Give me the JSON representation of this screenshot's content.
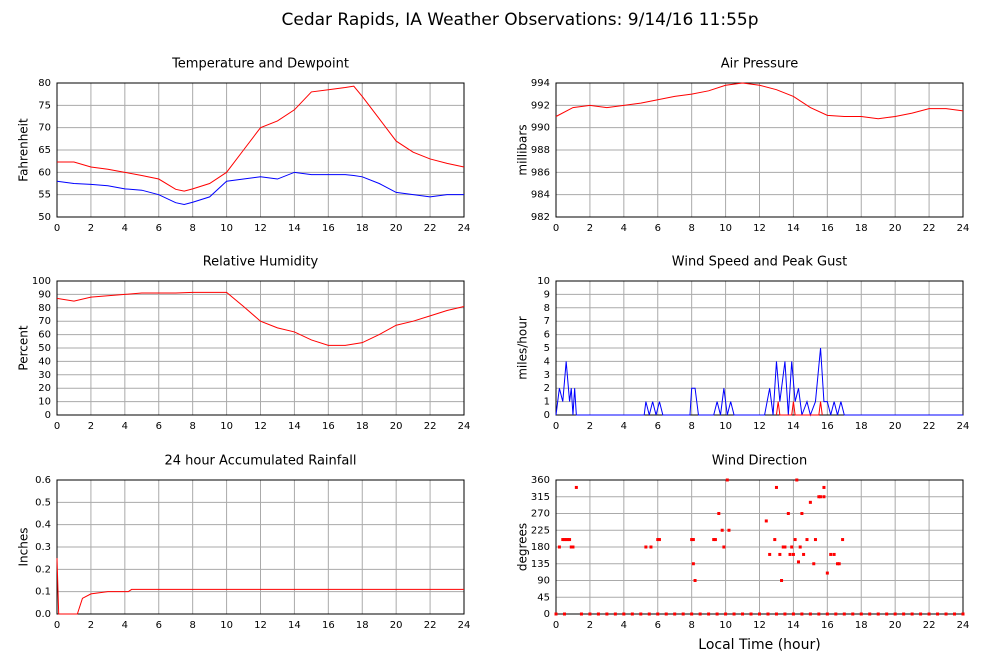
{
  "title": "Cedar Rapids, IA Weather Observations: 9/14/16 11:55p",
  "chart_data": [
    {
      "type": "line",
      "title": "Temperature and Dewpoint",
      "ylabel": "Fahrenheit",
      "x": [
        0,
        1,
        2,
        3,
        4,
        5,
        6,
        7,
        7.5,
        8,
        9,
        10,
        11,
        12,
        13,
        14,
        15,
        16,
        17,
        17.5,
        18,
        19,
        20,
        21,
        22,
        23,
        24
      ],
      "series": [
        {
          "color": "#ff0000",
          "values": [
            62.3,
            62.3,
            61.2,
            60.7,
            60,
            59.3,
            58.5,
            56.2,
            55.8,
            56.3,
            57.5,
            60,
            65,
            70,
            71.5,
            74,
            78,
            78.5,
            79,
            79.3,
            77,
            72,
            67,
            64.5,
            63,
            62,
            61.2
          ]
        },
        {
          "color": "#0000ff",
          "values": [
            58,
            57.5,
            57.3,
            57,
            56.3,
            56,
            55,
            53.2,
            52.8,
            53.3,
            54.5,
            58,
            58.5,
            59,
            58.5,
            60,
            59.5,
            59.5,
            59.5,
            59.3,
            59,
            57.5,
            55.5,
            55,
            54.5,
            55,
            55
          ]
        }
      ],
      "xlim": [
        0,
        24
      ],
      "xticks": [
        0,
        2,
        4,
        6,
        8,
        10,
        12,
        14,
        16,
        18,
        20,
        22,
        24
      ],
      "ylim": [
        50,
        80
      ],
      "yticks": [
        50,
        55,
        60,
        65,
        70,
        75,
        80
      ],
      "grid": true
    },
    {
      "type": "line",
      "title": "Air Pressure",
      "ylabel": "millibars",
      "x": [
        0,
        1,
        2,
        3,
        4,
        5,
        6,
        7,
        8,
        9,
        10,
        11,
        12,
        13,
        14,
        15,
        16,
        17,
        18,
        19,
        20,
        21,
        22,
        23,
        24
      ],
      "series": [
        {
          "color": "#ff0000",
          "values": [
            991,
            991.8,
            992,
            991.8,
            992,
            992.2,
            992.5,
            992.8,
            993,
            993.3,
            993.8,
            994,
            993.8,
            993.4,
            992.8,
            991.8,
            991.1,
            991,
            991,
            990.8,
            991,
            991.3,
            991.7,
            991.7,
            991.5
          ]
        }
      ],
      "xlim": [
        0,
        24
      ],
      "xticks": [
        0,
        2,
        4,
        6,
        8,
        10,
        12,
        14,
        16,
        18,
        20,
        22,
        24
      ],
      "ylim": [
        982,
        994
      ],
      "yticks": [
        982,
        984,
        986,
        988,
        990,
        992,
        994
      ],
      "grid": true
    },
    {
      "type": "line",
      "title": "Relative Humidity",
      "ylabel": "Percent",
      "x": [
        0,
        1,
        2,
        3,
        4,
        5,
        6,
        7,
        8,
        9,
        10,
        11,
        12,
        13,
        14,
        15,
        16,
        17,
        18,
        19,
        20,
        21,
        22,
        23,
        24
      ],
      "series": [
        {
          "color": "#ff0000",
          "values": [
            87,
            85,
            88,
            89,
            90,
            91,
            91,
            91,
            91.5,
            91.5,
            91.5,
            81,
            70,
            65,
            62,
            56,
            52,
            52,
            54,
            60,
            67,
            70,
            74,
            78,
            81
          ]
        }
      ],
      "xlim": [
        0,
        24
      ],
      "xticks": [
        0,
        2,
        4,
        6,
        8,
        10,
        12,
        14,
        16,
        18,
        20,
        22,
        24
      ],
      "ylim": [
        0,
        100
      ],
      "yticks": [
        0,
        10,
        20,
        30,
        40,
        50,
        60,
        70,
        80,
        90,
        100
      ],
      "grid": true
    },
    {
      "type": "line",
      "title": "Wind Speed and Peak Gust",
      "ylabel": "miles/hour",
      "series": [
        {
          "color": "#0000ff",
          "x": [
            0,
            0.2,
            0.4,
            0.6,
            0.8,
            0.9,
            1,
            1.1,
            1.2,
            5.2,
            5.3,
            5.5,
            5.7,
            5.9,
            6.1,
            6.3,
            7.9,
            8,
            8.2,
            8.4,
            9.3,
            9.5,
            9.7,
            9.9,
            10.1,
            10.3,
            10.5,
            12.3,
            12.6,
            12.8,
            13,
            13.2,
            13.5,
            13.7,
            13.9,
            14.1,
            14.3,
            14.5,
            14.8,
            15,
            15.3,
            15.6,
            15.8,
            16,
            16.2,
            16.4,
            16.6,
            16.8,
            17,
            24
          ],
          "values": [
            0,
            2,
            1,
            4,
            1,
            2,
            0,
            2,
            0,
            0,
            1,
            0,
            1,
            0,
            1,
            0,
            0,
            2,
            2,
            0,
            0,
            1,
            0,
            2,
            0,
            1,
            0,
            0,
            2,
            0,
            4,
            1,
            4,
            0,
            4,
            1,
            2,
            0,
            1,
            0,
            1,
            5,
            1,
            1,
            0,
            1,
            0,
            1,
            0,
            0
          ]
        },
        {
          "color": "#ff0000",
          "x": [
            13,
            13.1,
            13.2,
            13.9,
            14,
            14.1,
            15.5,
            15.6,
            15.7
          ],
          "values": [
            0,
            1,
            0,
            0,
            1,
            0,
            0,
            1,
            0
          ]
        }
      ],
      "xlim": [
        0,
        24
      ],
      "xticks": [
        0,
        2,
        4,
        6,
        8,
        10,
        12,
        14,
        16,
        18,
        20,
        22,
        24
      ],
      "ylim": [
        0,
        10
      ],
      "yticks": [
        0,
        1,
        2,
        3,
        4,
        5,
        6,
        7,
        8,
        9,
        10
      ],
      "grid": true
    },
    {
      "type": "line",
      "title": "24 hour Accumulated Rainfall",
      "ylabel": "Inches",
      "x": [
        0,
        0.1,
        1.2,
        1.5,
        2,
        3,
        4.2,
        4.4,
        24
      ],
      "series": [
        {
          "color": "#ff0000",
          "values": [
            0.25,
            0,
            0,
            0.07,
            0.09,
            0.1,
            0.1,
            0.11,
            0.11
          ]
        }
      ],
      "xlim": [
        0,
        24
      ],
      "xticks": [
        0,
        2,
        4,
        6,
        8,
        10,
        12,
        14,
        16,
        18,
        20,
        22,
        24
      ],
      "ylim": [
        0,
        0.6
      ],
      "yticks": [
        {
          "value": 0,
          "label": "0.0"
        },
        0.1,
        0.2,
        0.3,
        0.4,
        0.5,
        0.6
      ],
      "grid": true
    },
    {
      "type": "scatter",
      "title": "Wind Direction",
      "ylabel": "degrees",
      "xlabel": "Local Time (hour)",
      "color": "#ff0000",
      "x": [
        0,
        0.5,
        1.5,
        2,
        2.5,
        3,
        3.5,
        4,
        4.5,
        5,
        5.5,
        6,
        6.5,
        7,
        7.5,
        8,
        8.5,
        9,
        9.5,
        10,
        10.5,
        11,
        11.5,
        12,
        12.5,
        13,
        13.5,
        14,
        14.5,
        15,
        15.5,
        16,
        16.5,
        17,
        17.5,
        18,
        18.5,
        19,
        19.5,
        20,
        20.5,
        21,
        21.5,
        22,
        22.5,
        23,
        23.5,
        24,
        0.2,
        0.4,
        0.5,
        0.6,
        0.7,
        0.8,
        0.9,
        1,
        1.2,
        5.3,
        5.6,
        6,
        6.1,
        8,
        8.1,
        8.1,
        8.2,
        9.3,
        9.4,
        9.6,
        9.8,
        9.9,
        10.1,
        10.2,
        12.4,
        12.6,
        12.9,
        13,
        13.2,
        13.3,
        13.4,
        13.5,
        13.7,
        13.8,
        13.9,
        14,
        14.1,
        14.2,
        14.3,
        14.4,
        14.5,
        14.6,
        14.8,
        15,
        15.2,
        15.3,
        15.5,
        15.6,
        15.8,
        15.8,
        16,
        16.2,
        16.4,
        16.6,
        16.7,
        16.9
      ],
      "values": [
        0,
        0,
        0,
        0,
        0,
        0,
        0,
        0,
        0,
        0,
        0,
        0,
        0,
        0,
        0,
        0,
        0,
        0,
        0,
        0,
        0,
        0,
        0,
        0,
        0,
        0,
        0,
        0,
        0,
        0,
        0,
        0,
        0,
        0,
        0,
        0,
        0,
        0,
        0,
        0,
        0,
        0,
        0,
        0,
        0,
        0,
        0,
        0,
        180,
        200,
        200,
        200,
        200,
        200,
        180,
        180,
        340,
        180,
        180,
        200,
        200,
        200,
        200,
        135,
        90,
        200,
        200,
        270,
        225,
        180,
        360,
        225,
        250,
        160,
        200,
        340,
        160,
        90,
        180,
        180,
        270,
        160,
        180,
        160,
        200,
        360,
        140,
        180,
        270,
        160,
        200,
        300,
        135,
        200,
        315,
        315,
        340,
        315,
        110,
        160,
        160,
        135,
        135,
        200
      ],
      "xlim": [
        0,
        24
      ],
      "xticks": [
        0,
        2,
        4,
        6,
        8,
        10,
        12,
        14,
        16,
        18,
        20,
        22,
        24
      ],
      "ylim": [
        0,
        360
      ],
      "yticks": [
        0,
        45,
        90,
        135,
        180,
        225,
        270,
        315,
        360
      ],
      "grid": true
    }
  ]
}
